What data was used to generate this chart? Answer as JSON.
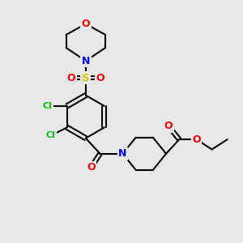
{
  "bg_color": "#e8e8e8",
  "atom_colors": {
    "C": "#000000",
    "N": "#0000ff",
    "O": "#ff0000",
    "S": "#cccc00",
    "Cl": "#00cc00"
  },
  "bond_color": "#000000",
  "figsize": [
    3.0,
    3.0
  ],
  "dpi": 100
}
